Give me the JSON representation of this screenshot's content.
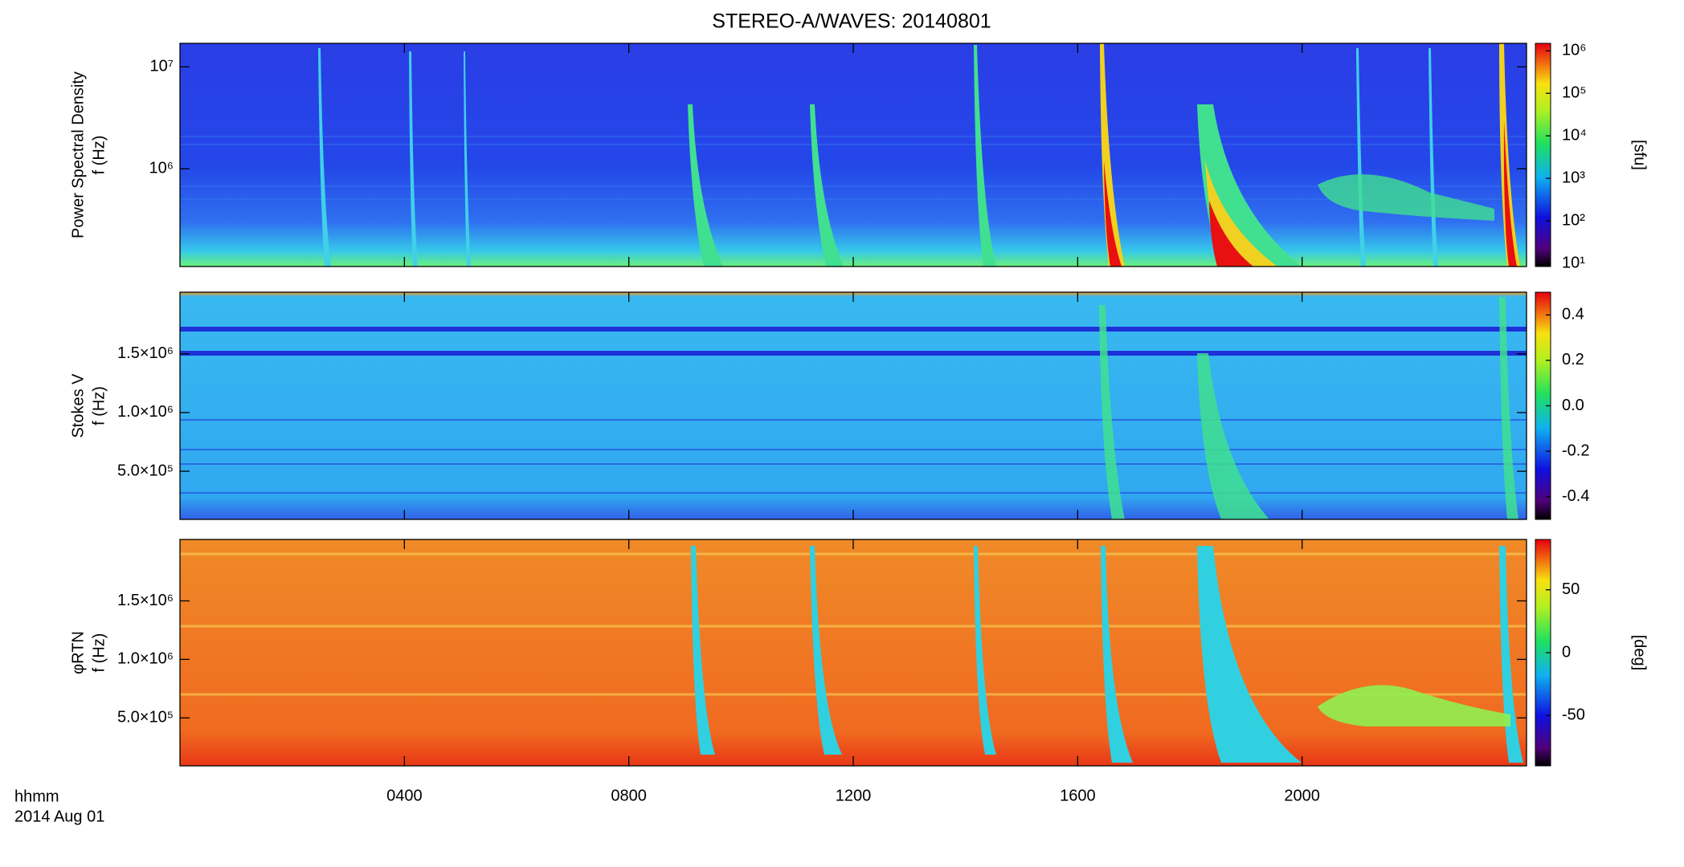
{
  "title": "STEREO-A/WAVES: 20140801",
  "x_axis_label": "hhmm",
  "date_label": "2014 Aug 01",
  "chart_data": [
    {
      "type": "spectrogram",
      "ylabel": [
        "Power Spectral Density",
        "f (Hz)"
      ],
      "yscale": "log",
      "ylim": [
        110000,
        17000000
      ],
      "yticks": [
        {
          "value": 1000000,
          "label": "10⁶"
        },
        {
          "value": 10000000,
          "label": "10⁷"
        }
      ],
      "xlim": [
        0,
        24
      ],
      "xticks": [
        4,
        8,
        12,
        16,
        20
      ],
      "cscale": "log",
      "clim": [
        8.4,
        1500000
      ],
      "cticks": [
        {
          "value": 10,
          "label": "10¹"
        },
        {
          "value": 100,
          "label": "10²"
        },
        {
          "value": 1000,
          "label": "10³"
        },
        {
          "value": 10000,
          "label": "10⁴"
        },
        {
          "value": 100000,
          "label": "10⁵"
        },
        {
          "value": 1000000,
          "label": "10⁶"
        }
      ],
      "colorbar_label": "[sfu]"
    },
    {
      "type": "spectrogram",
      "ylabel": [
        "Stokes V",
        "f (Hz)"
      ],
      "yscale": "linear",
      "ylim": [
        90000,
        2025000
      ],
      "yticks": [
        {
          "value": 500000,
          "label": "5.0×10⁵"
        },
        {
          "value": 1000000,
          "label": "1.0×10⁶"
        },
        {
          "value": 1500000,
          "label": "1.5×10⁶"
        }
      ],
      "xlim": [
        0,
        24
      ],
      "xticks": [
        4,
        8,
        12,
        16,
        20
      ],
      "cscale": "linear",
      "clim": [
        -0.5,
        0.5
      ],
      "cticks": [
        {
          "value": -0.4,
          "label": "-0.4"
        },
        {
          "value": -0.2,
          "label": "-0.2"
        },
        {
          "value": 0,
          "label": "0.0"
        },
        0.2,
        0.4
      ]
    },
    {
      "type": "spectrogram",
      "ylabel": [
        "φRTN",
        "f (Hz)"
      ],
      "yscale": "linear",
      "ylim": [
        90000,
        2025000
      ],
      "yticks": [
        {
          "value": 500000,
          "label": "5.0×10⁵"
        },
        {
          "value": 1000000,
          "label": "1.0×10⁶"
        },
        {
          "value": 1500000,
          "label": "1.5×10⁶"
        }
      ],
      "xlim": [
        0,
        24
      ],
      "xticks": [
        {
          "value": 4,
          "label": "0400"
        },
        {
          "value": 8,
          "label": "0800"
        },
        {
          "value": 12,
          "label": "1200"
        },
        {
          "value": 16,
          "label": "1600"
        },
        {
          "value": 20,
          "label": "2000"
        }
      ],
      "cscale": "linear",
      "clim": [
        -90,
        90
      ],
      "cticks": [
        -50,
        0,
        50
      ],
      "colorbar_label": "[deg]"
    }
  ]
}
